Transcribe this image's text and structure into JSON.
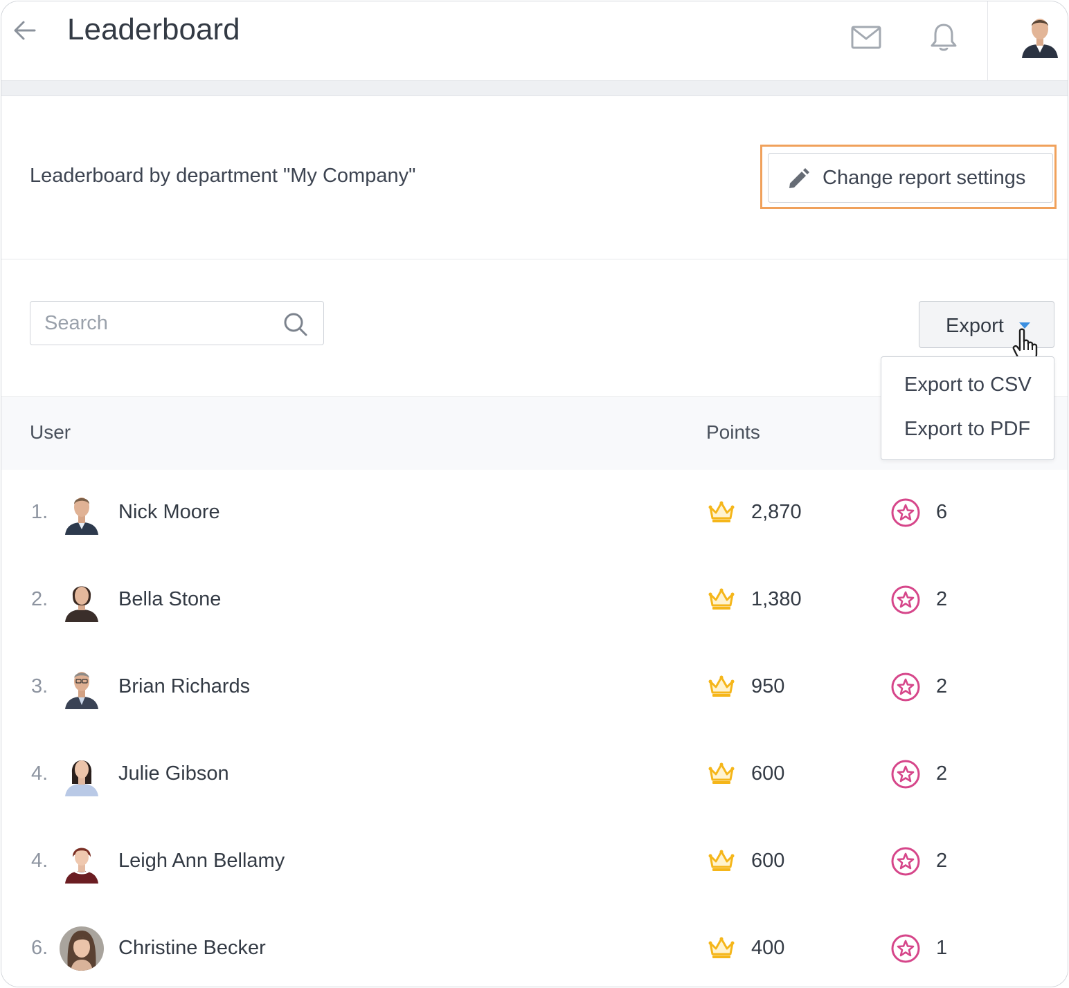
{
  "header": {
    "title": "Leaderboard",
    "icons": [
      "back-arrow-icon",
      "mail-icon",
      "bell-icon"
    ]
  },
  "report": {
    "label": "Leaderboard by department \"My Company\"",
    "settings_button_label": "Change report settings",
    "highlight_color": "#f0a15b"
  },
  "toolbar": {
    "search_placeholder": "Search",
    "export_label": "Export",
    "export_menu": [
      "Export to CSV",
      "Export to PDF"
    ],
    "caret_color": "#3b8fe0"
  },
  "table": {
    "columns": {
      "user": "User",
      "points": "Points"
    },
    "rows": [
      {
        "rank": "1.",
        "name": "Nick Moore",
        "points": "2,870",
        "badges": "6"
      },
      {
        "rank": "2.",
        "name": "Bella Stone",
        "points": "1,380",
        "badges": "2"
      },
      {
        "rank": "3.",
        "name": "Brian Richards",
        "points": "950",
        "badges": "2"
      },
      {
        "rank": "4.",
        "name": "Julie Gibson",
        "points": "600",
        "badges": "2"
      },
      {
        "rank": "4.",
        "name": "Leigh Ann Bellamy",
        "points": "600",
        "badges": "2"
      },
      {
        "rank": "6.",
        "name": "Christine Becker",
        "points": "400",
        "badges": "1"
      }
    ]
  },
  "colors": {
    "crown": "#f5b61a",
    "badge": "#d6468a"
  }
}
